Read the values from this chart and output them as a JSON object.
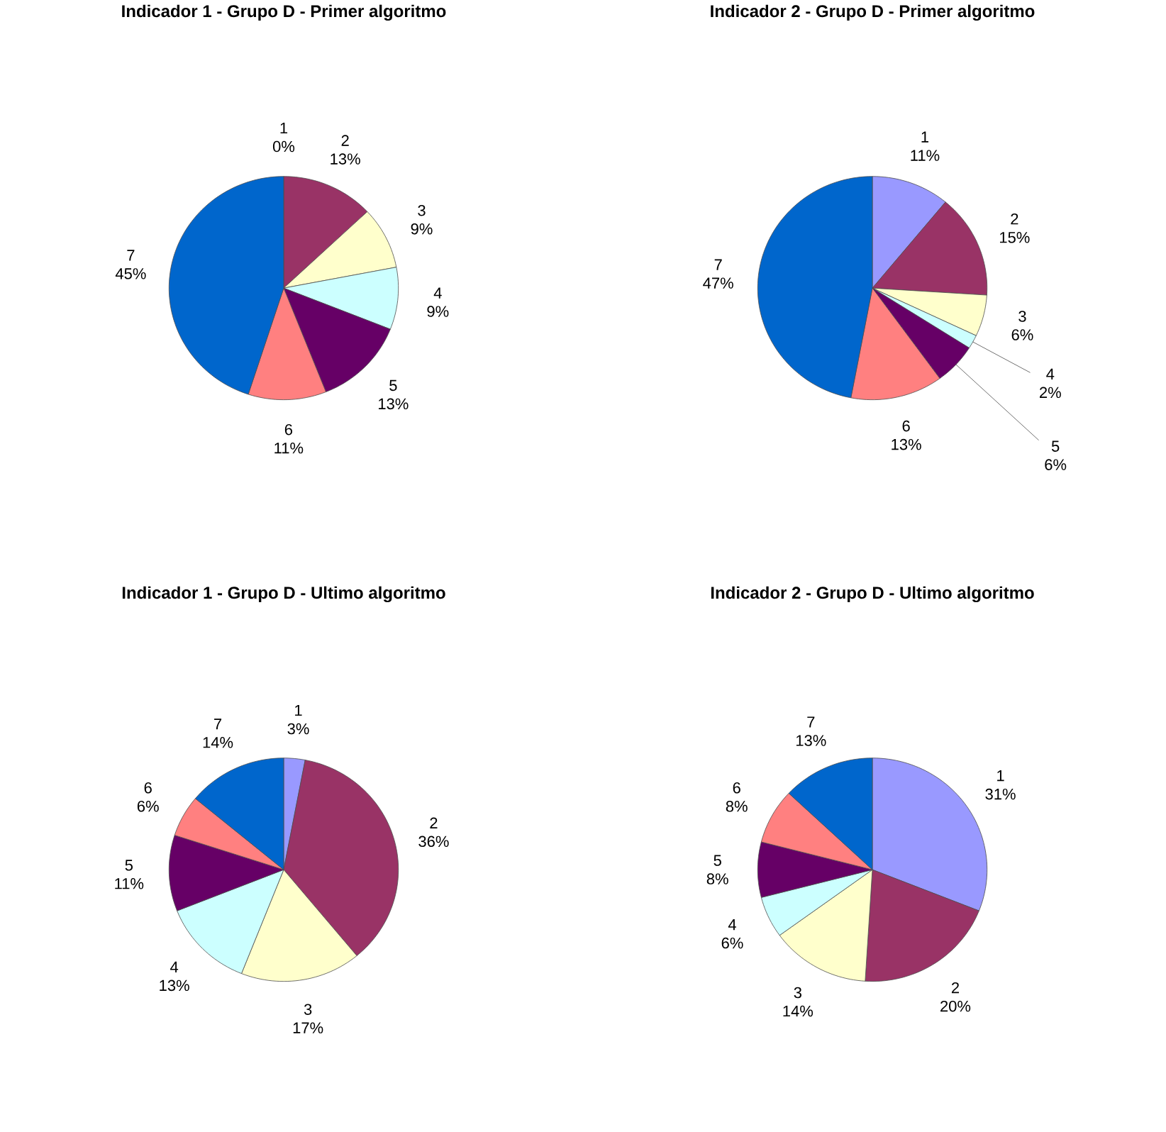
{
  "chart_data": [
    {
      "type": "pie",
      "title": "Indicador 1 - Grupo D - Primer algoritmo",
      "categories": [
        "1",
        "2",
        "3",
        "4",
        "5",
        "6",
        "7"
      ],
      "values": [
        0,
        13,
        9,
        9,
        13,
        11,
        45
      ],
      "value_labels": [
        "0%",
        "13%",
        "9%",
        "9%",
        "13%",
        "11%",
        "45%"
      ],
      "colors": [
        "#9999ff",
        "#993366",
        "#ffffcc",
        "#ccffff",
        "#660066",
        "#ff8080",
        "#0066cc"
      ]
    },
    {
      "type": "pie",
      "title": "Indicador 2 - Grupo D - Primer algoritmo",
      "categories": [
        "1",
        "2",
        "3",
        "4",
        "5",
        "6",
        "7"
      ],
      "values": [
        11,
        15,
        6,
        2,
        6,
        13,
        47
      ],
      "value_labels": [
        "11%",
        "15%",
        "6%",
        "2%",
        "6%",
        "13%",
        "47%"
      ],
      "colors": [
        "#9999ff",
        "#993366",
        "#ffffcc",
        "#ccffff",
        "#660066",
        "#ff8080",
        "#0066cc"
      ]
    },
    {
      "type": "pie",
      "title": "Indicador 1 - Grupo D - Ultimo algoritmo",
      "categories": [
        "1",
        "2",
        "3",
        "4",
        "5",
        "6",
        "7"
      ],
      "values": [
        3,
        36,
        17,
        13,
        11,
        6,
        14
      ],
      "value_labels": [
        "3%",
        "36%",
        "17%",
        "13%",
        "11%",
        "6%",
        "14%"
      ],
      "colors": [
        "#9999ff",
        "#993366",
        "#ffffcc",
        "#ccffff",
        "#660066",
        "#ff8080",
        "#0066cc"
      ]
    },
    {
      "type": "pie",
      "title": "Indicador 2 - Grupo D - Ultimo algoritmo",
      "categories": [
        "1",
        "2",
        "3",
        "4",
        "5",
        "6",
        "7"
      ],
      "values": [
        31,
        20,
        14,
        6,
        8,
        8,
        13
      ],
      "value_labels": [
        "31%",
        "20%",
        "14%",
        "6%",
        "8%",
        "8%",
        "13%"
      ],
      "colors": [
        "#9999ff",
        "#993366",
        "#ffffcc",
        "#ccffff",
        "#660066",
        "#ff8080",
        "#0066cc"
      ]
    }
  ]
}
